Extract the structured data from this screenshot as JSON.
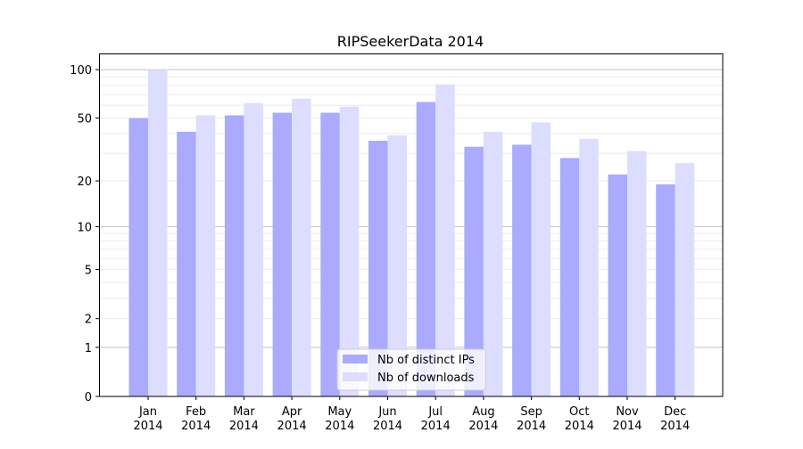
{
  "chart_data": {
    "type": "bar",
    "title": "RIPSeekerData 2014",
    "xlabel": "",
    "ylabel": "",
    "yscale": "log(1+x)",
    "ylim": [
      0,
      120
    ],
    "yticks": [
      0,
      1,
      2,
      5,
      10,
      20,
      50,
      100
    ],
    "grid": true,
    "legend_position": "bottom-center",
    "categories": [
      [
        "Jan",
        "2014"
      ],
      [
        "Feb",
        "2014"
      ],
      [
        "Mar",
        "2014"
      ],
      [
        "Apr",
        "2014"
      ],
      [
        "May",
        "2014"
      ],
      [
        "Jun",
        "2014"
      ],
      [
        "Jul",
        "2014"
      ],
      [
        "Aug",
        "2014"
      ],
      [
        "Sep",
        "2014"
      ],
      [
        "Oct",
        "2014"
      ],
      [
        "Nov",
        "2014"
      ],
      [
        "Dec",
        "2014"
      ]
    ],
    "series": [
      {
        "name": "Nb of distinct IPs",
        "color": "#aaaaff",
        "values": [
          50,
          41,
          52,
          54,
          54,
          36,
          63,
          33,
          34,
          28,
          22,
          19
        ]
      },
      {
        "name": "Nb of downloads",
        "color": "#ddddff",
        "values": [
          100,
          52,
          62,
          66,
          59,
          39,
          81,
          41,
          47,
          37,
          31,
          26
        ]
      }
    ]
  }
}
